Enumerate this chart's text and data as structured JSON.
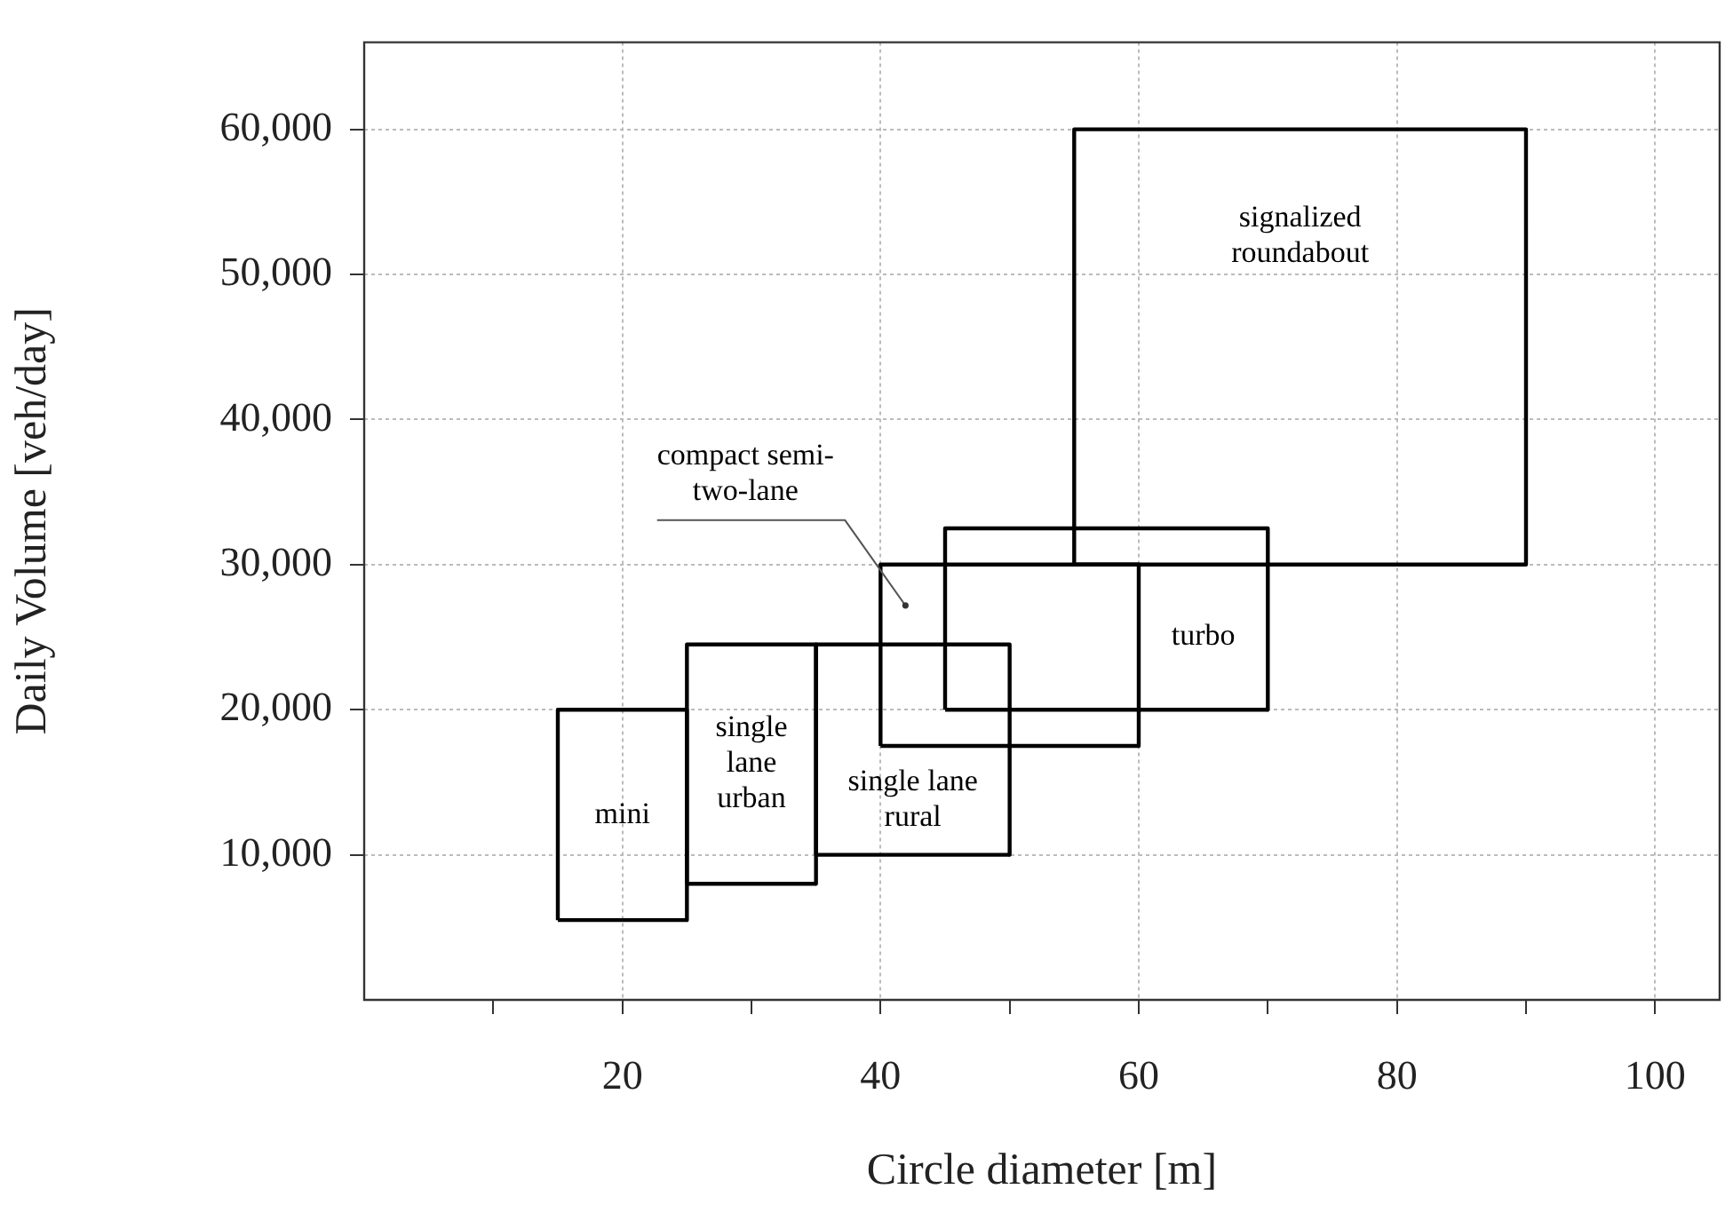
{
  "chart_data": {
    "type": "line",
    "xlabel": "Circle diameter [m]",
    "ylabel": "Daily Volume [veh/day]",
    "xlim": [
      0,
      105
    ],
    "xticks": [
      {
        "value": 10,
        "label": null
      },
      20,
      {
        "value": 30,
        "label": null
      },
      40,
      {
        "value": 50,
        "label": null
      },
      60,
      {
        "value": 70,
        "label": null
      },
      80,
      {
        "value": 90,
        "label": null
      },
      100
    ],
    "ylim": [
      0,
      66000
    ],
    "yticks": [
      {
        "value": 10000,
        "label": "10,000"
      },
      {
        "value": 20000,
        "label": "20,000"
      },
      {
        "value": 30000,
        "label": "30,000"
      },
      {
        "value": 40000,
        "label": "40,000"
      },
      {
        "value": 50000,
        "label": "50,000"
      },
      {
        "value": 60000,
        "label": "60,000"
      }
    ],
    "grid": true,
    "series": [
      {
        "name": "mini",
        "type": "line",
        "color": "#000000",
        "x": [
          15,
          15,
          25,
          25
        ],
        "values": [
          5500,
          20000,
          20000,
          5500
        ]
      },
      {
        "type": "line",
        "color": "#000000",
        "x": [
          15,
          25
        ],
        "values": [
          5500,
          5500
        ]
      },
      {
        "name": "single\nlane\nurban",
        "type": "line",
        "color": "#000000",
        "x": [
          25,
          25,
          35,
          35
        ],
        "values": [
          8000,
          24500,
          24500,
          8000
        ]
      },
      {
        "type": "line",
        "color": "#000000",
        "x": [
          25,
          35
        ],
        "values": [
          8000,
          8000
        ]
      },
      {
        "name": "single lane\nrural",
        "type": "line",
        "color": "#000000",
        "x": [
          35,
          35,
          50,
          50
        ],
        "values": [
          10000,
          24500,
          24500,
          10000
        ]
      },
      {
        "type": "line",
        "color": "#000000",
        "x": [
          35,
          50
        ],
        "values": [
          10000,
          10000
        ]
      },
      {
        "name": "compact semi-\ntwo-lane",
        "type": "line",
        "color": "#000000",
        "x": [
          40,
          40,
          60,
          60
        ],
        "values": [
          17500,
          30000,
          30000,
          17500
        ]
      },
      {
        "type": "line",
        "color": "#000000",
        "x": [
          40,
          60
        ],
        "values": [
          17500,
          17500
        ]
      },
      {
        "name": "turbo",
        "type": "line",
        "color": "#000000",
        "x": [
          45,
          45,
          70,
          70
        ],
        "values": [
          20000,
          32500,
          32500,
          20000
        ]
      },
      {
        "type": "line",
        "color": "#000000",
        "x": [
          45,
          70
        ],
        "values": [
          20000,
          20000
        ]
      },
      {
        "name": "signalized\nroundabout",
        "type": "line",
        "color": "#000000",
        "x": [
          55,
          55,
          90,
          90
        ],
        "values": [
          30000,
          60000,
          60000,
          30000
        ]
      },
      {
        "type": "line",
        "color": "#000000",
        "x": [
          55,
          90
        ],
        "values": [
          30000,
          30000
        ]
      }
    ]
  }
}
